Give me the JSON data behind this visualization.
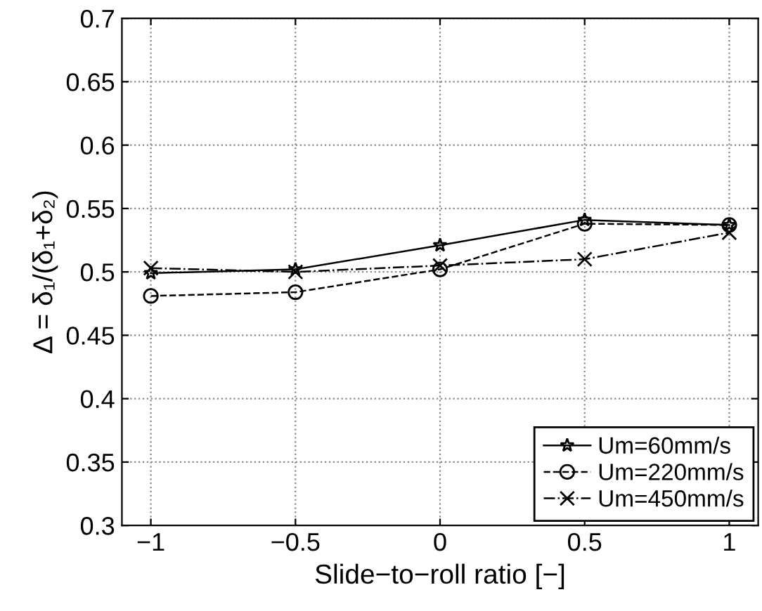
{
  "chart_data": {
    "type": "line",
    "xlabel": "Slide−to−roll ratio [−]",
    "ylabel": "Δ = δ₁/(δ₁+δ₂)",
    "x": [
      -1,
      -0.5,
      0,
      0.5,
      1
    ],
    "series": [
      {
        "name": "Um=60mm/s",
        "color": "#000000",
        "values": [
          0.499,
          0.502,
          0.521,
          0.541,
          0.537
        ],
        "marker": "star",
        "line_style": "solid"
      },
      {
        "name": "Um=220mm/s",
        "color": "#000000",
        "values": [
          0.481,
          0.484,
          0.502,
          0.538,
          0.537
        ],
        "marker": "circle",
        "line_style": "dashed"
      },
      {
        "name": "Um=450mm/s",
        "color": "#000000",
        "values": [
          0.503,
          0.5,
          0.505,
          0.51,
          0.531
        ],
        "marker": "cross",
        "line_style": "dashdot"
      }
    ],
    "xlim": [
      -1.1,
      1.1
    ],
    "ylim": [
      0.3,
      0.7
    ],
    "xticks": [
      {
        "value": -1,
        "label": "−1"
      },
      {
        "value": -0.5,
        "label": "−0.5"
      },
      0,
      0.5,
      1
    ],
    "yticks": [
      0.3,
      0.35,
      0.4,
      0.45,
      0.5,
      0.55,
      0.6,
      0.65,
      0.7
    ],
    "grid": true,
    "legend": "bottom right"
  }
}
